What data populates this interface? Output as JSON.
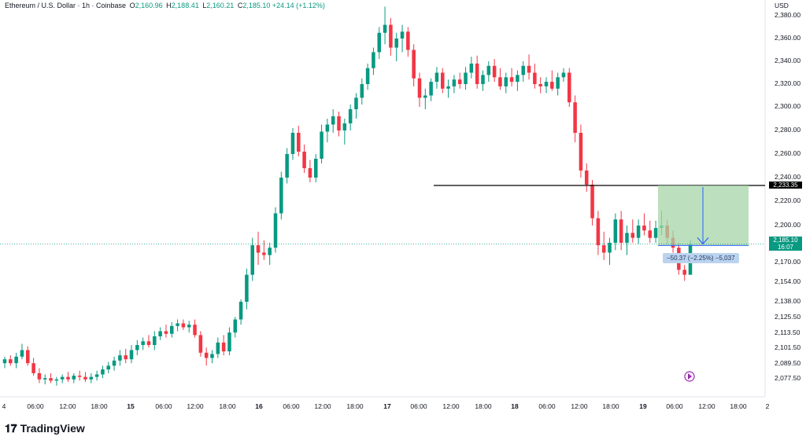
{
  "header": {
    "symbol": "Ethereum / U.S. Dollar · 1h · Coinbase",
    "o_label": "O",
    "o": "2,160.96",
    "h_label": "H",
    "h": "2,188.41",
    "l_label": "L",
    "l": "2,160.21",
    "c_label": "C",
    "c": "2,185.10",
    "change": "+24.14 (+1.12%)"
  },
  "axis": {
    "currency": "USD"
  },
  "price_labels": [
    {
      "label": "2,380.00",
      "v": 2380
    },
    {
      "label": "2,360.00",
      "v": 2360
    },
    {
      "label": "2,340.00",
      "v": 2340
    },
    {
      "label": "2,320.00",
      "v": 2320
    },
    {
      "label": "2,300.00",
      "v": 2300
    },
    {
      "label": "2,280.00",
      "v": 2280
    },
    {
      "label": "2,260.00",
      "v": 2260
    },
    {
      "label": "2,240.00",
      "v": 2240
    },
    {
      "label": "2,220.00",
      "v": 2220
    },
    {
      "label": "2,200.00",
      "v": 2200
    },
    {
      "label": "2,170.00",
      "v": 2170
    },
    {
      "label": "2,154.00",
      "v": 2154
    },
    {
      "label": "2,138.00",
      "v": 2138
    },
    {
      "label": "2,125.50",
      "v": 2125.5
    },
    {
      "label": "2,113.50",
      "v": 2113.5
    },
    {
      "label": "2,101.50",
      "v": 2101.5
    },
    {
      "label": "2,089.50",
      "v": 2089.5
    },
    {
      "label": "2,077.50",
      "v": 2077.5
    }
  ],
  "time_labels": [
    "4",
    "06:00",
    "12:00",
    "18:00",
    "15",
    "06:00",
    "12:00",
    "18:00",
    "16",
    "06:00",
    "12:00",
    "18:00",
    "17",
    "06:00",
    "12:00",
    "18:00",
    "18",
    "06:00",
    "12:00",
    "18:00",
    "19",
    "06:00",
    "12:00",
    "18:00",
    "2"
  ],
  "current_price": {
    "value": "2,185.10",
    "countdown": "16:07"
  },
  "horizontal_line": {
    "value": 2233.35,
    "label": "2,233.35"
  },
  "measure_label": "−50.37 (−2.25%) −5,037",
  "brand": "TradingView",
  "colors": {
    "up": "#089981",
    "down": "#f23645",
    "zone": "#a5d6a7",
    "arrow": "#2962ff"
  },
  "chart_data": {
    "type": "candlestick",
    "title": "Ethereum / U.S. Dollar · 1h · Coinbase",
    "ylabel": "USD",
    "ylim": [
      2070,
      2395
    ],
    "candles": [
      [
        2090,
        2095,
        2086,
        2093
      ],
      [
        2093,
        2096,
        2088,
        2090
      ],
      [
        2090,
        2098,
        2086,
        2095
      ],
      [
        2095,
        2105,
        2093,
        2100
      ],
      [
        2100,
        2103,
        2088,
        2090
      ],
      [
        2090,
        2094,
        2080,
        2082
      ],
      [
        2082,
        2086,
        2074,
        2077
      ],
      [
        2077,
        2081,
        2073,
        2078
      ],
      [
        2078,
        2082,
        2074,
        2076
      ],
      [
        2076,
        2079,
        2072,
        2077
      ],
      [
        2077,
        2081,
        2074,
        2079
      ],
      [
        2079,
        2083,
        2075,
        2077
      ],
      [
        2077,
        2082,
        2074,
        2080
      ],
      [
        2080,
        2084,
        2076,
        2079
      ],
      [
        2079,
        2083,
        2075,
        2077
      ],
      [
        2077,
        2082,
        2074,
        2079
      ],
      [
        2079,
        2084,
        2076,
        2081
      ],
      [
        2081,
        2088,
        2078,
        2085
      ],
      [
        2085,
        2091,
        2082,
        2088
      ],
      [
        2088,
        2095,
        2084,
        2092
      ],
      [
        2092,
        2100,
        2088,
        2096
      ],
      [
        2096,
        2101,
        2090,
        2093
      ],
      [
        2093,
        2104,
        2090,
        2100
      ],
      [
        2100,
        2108,
        2096,
        2104
      ],
      [
        2104,
        2110,
        2100,
        2107
      ],
      [
        2107,
        2112,
        2102,
        2104
      ],
      [
        2104,
        2115,
        2100,
        2111
      ],
      [
        2111,
        2118,
        2108,
        2115
      ],
      [
        2115,
        2120,
        2110,
        2113
      ],
      [
        2113,
        2122,
        2110,
        2119
      ],
      [
        2119,
        2124,
        2115,
        2121
      ],
      [
        2121,
        2124,
        2116,
        2118
      ],
      [
        2118,
        2123,
        2114,
        2120
      ],
      [
        2120,
        2124,
        2110,
        2112
      ],
      [
        2112,
        2115,
        2095,
        2098
      ],
      [
        2098,
        2102,
        2088,
        2094
      ],
      [
        2094,
        2100,
        2090,
        2097
      ],
      [
        2097,
        2110,
        2094,
        2106
      ],
      [
        2106,
        2112,
        2096,
        2099
      ],
      [
        2099,
        2118,
        2096,
        2114
      ],
      [
        2114,
        2126,
        2110,
        2124
      ],
      [
        2124,
        2140,
        2120,
        2138
      ],
      [
        2138,
        2165,
        2132,
        2160
      ],
      [
        2160,
        2190,
        2155,
        2184
      ],
      [
        2184,
        2195,
        2168,
        2178
      ],
      [
        2178,
        2188,
        2172,
        2176
      ],
      [
        2176,
        2186,
        2168,
        2182
      ],
      [
        2182,
        2215,
        2178,
        2210
      ],
      [
        2210,
        2245,
        2205,
        2240
      ],
      [
        2240,
        2265,
        2235,
        2260
      ],
      [
        2260,
        2282,
        2255,
        2278
      ],
      [
        2278,
        2284,
        2258,
        2262
      ],
      [
        2262,
        2268,
        2244,
        2248
      ],
      [
        2248,
        2255,
        2236,
        2240
      ],
      [
        2240,
        2260,
        2236,
        2256
      ],
      [
        2256,
        2285,
        2252,
        2279
      ],
      [
        2279,
        2290,
        2270,
        2285
      ],
      [
        2285,
        2298,
        2278,
        2292
      ],
      [
        2292,
        2296,
        2275,
        2280
      ],
      [
        2280,
        2290,
        2268,
        2286
      ],
      [
        2286,
        2302,
        2280,
        2298
      ],
      [
        2298,
        2312,
        2290,
        2308
      ],
      [
        2308,
        2325,
        2302,
        2320
      ],
      [
        2320,
        2338,
        2315,
        2334
      ],
      [
        2334,
        2352,
        2328,
        2348
      ],
      [
        2348,
        2370,
        2342,
        2365
      ],
      [
        2365,
        2388,
        2355,
        2372
      ],
      [
        2372,
        2378,
        2345,
        2352
      ],
      [
        2352,
        2365,
        2340,
        2360
      ],
      [
        2360,
        2372,
        2348,
        2366
      ],
      [
        2366,
        2370,
        2344,
        2350
      ],
      [
        2350,
        2355,
        2318,
        2325
      ],
      [
        2325,
        2330,
        2300,
        2308
      ],
      [
        2308,
        2316,
        2298,
        2310
      ],
      [
        2310,
        2325,
        2305,
        2322
      ],
      [
        2322,
        2335,
        2316,
        2330
      ],
      [
        2330,
        2334,
        2312,
        2316
      ],
      [
        2316,
        2324,
        2308,
        2318
      ],
      [
        2318,
        2328,
        2312,
        2324
      ],
      [
        2324,
        2330,
        2316,
        2320
      ],
      [
        2320,
        2335,
        2315,
        2330
      ],
      [
        2330,
        2344,
        2325,
        2338
      ],
      [
        2338,
        2345,
        2316,
        2320
      ],
      [
        2320,
        2332,
        2314,
        2328
      ],
      [
        2328,
        2340,
        2322,
        2336
      ],
      [
        2336,
        2342,
        2322,
        2326
      ],
      [
        2326,
        2334,
        2315,
        2318
      ],
      [
        2318,
        2330,
        2312,
        2326
      ],
      [
        2326,
        2334,
        2318,
        2322
      ],
      [
        2322,
        2332,
        2314,
        2328
      ],
      [
        2328,
        2340,
        2322,
        2336
      ],
      [
        2336,
        2346,
        2324,
        2330
      ],
      [
        2330,
        2338,
        2316,
        2320
      ],
      [
        2320,
        2326,
        2312,
        2318
      ],
      [
        2318,
        2326,
        2312,
        2322
      ],
      [
        2322,
        2332,
        2314,
        2316
      ],
      [
        2316,
        2330,
        2310,
        2326
      ],
      [
        2326,
        2334,
        2322,
        2330
      ],
      [
        2330,
        2334,
        2300,
        2304
      ],
      [
        2304,
        2310,
        2270,
        2278
      ],
      [
        2278,
        2285,
        2240,
        2246
      ],
      [
        2246,
        2252,
        2228,
        2234
      ],
      [
        2234,
        2238,
        2200,
        2206
      ],
      [
        2206,
        2212,
        2176,
        2184
      ],
      [
        2184,
        2195,
        2172,
        2178
      ],
      [
        2178,
        2190,
        2168,
        2186
      ],
      [
        2186,
        2210,
        2180,
        2205
      ],
      [
        2205,
        2212,
        2180,
        2186
      ],
      [
        2186,
        2200,
        2176,
        2194
      ],
      [
        2194,
        2205,
        2186,
        2190
      ],
      [
        2190,
        2205,
        2185,
        2200
      ],
      [
        2200,
        2210,
        2192,
        2196
      ],
      [
        2196,
        2204,
        2186,
        2190
      ],
      [
        2190,
        2204,
        2186,
        2198
      ],
      [
        2198,
        2212,
        2192,
        2200
      ],
      [
        2200,
        2205,
        2185,
        2190
      ],
      [
        2190,
        2196,
        2178,
        2182
      ],
      [
        2182,
        2186,
        2160,
        2164
      ],
      [
        2164,
        2168,
        2155,
        2160
      ],
      [
        2160,
        2188,
        2160,
        2185
      ]
    ]
  }
}
